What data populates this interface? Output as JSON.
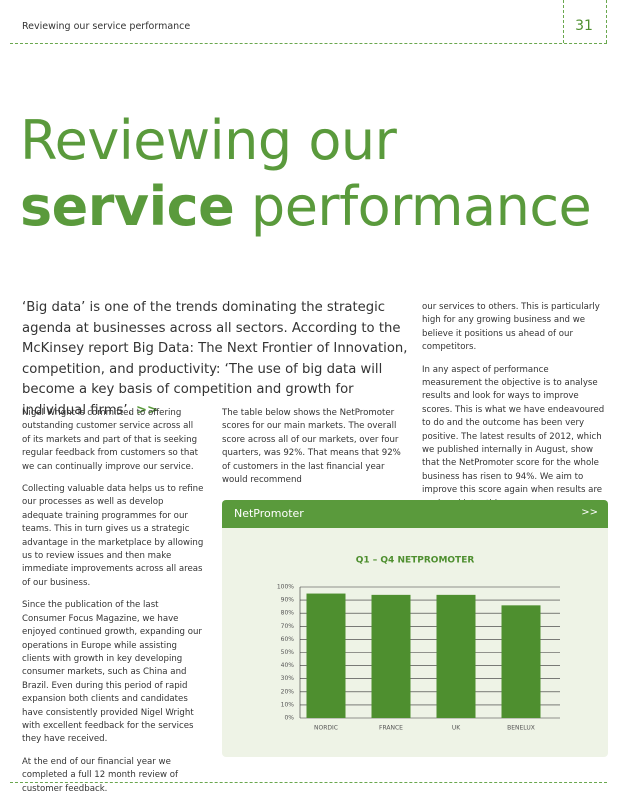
{
  "header": {
    "running_title": "Reviewing our service performance",
    "page_number": "31"
  },
  "title": {
    "line1": "Reviewing our",
    "line2_bold": "service",
    "line2_rest": "performance"
  },
  "intro": {
    "text": "‘Big data’ is one of the trends dominating the strategic agenda at businesses across all sectors. According to the McKinsey report Big Data: The Next Frontier of Innovation, competition, and productivity: ‘The use of big data will become a key basis of competition and growth for individual firms’.",
    "more": ">>"
  },
  "columns": [
    [
      "Nigel Wright is committed to offering outstanding customer service across all of its markets and part of that is seeking regular feedback from customers so that we can continually improve our service.",
      "Collecting valuable data helps us to refine our processes as well as develop adequate training programmes for our teams. This in turn gives us a strategic advantage in the marketplace by allowing us to review issues and then make immediate improvements across all areas of our business.",
      "Since the publication of the last Consumer Focus Magazine, we have enjoyed continued growth, expanding our operations in Europe while assisting clients with growth in key developing consumer markets, such as China and Brazil. Even during this period of rapid expansion both clients and candidates have consistently provided Nigel Wright with excellent feedback for the services they have received.",
      "At the end of our financial year we completed a full 12 month review of customer feedback."
    ],
    [
      "The table below shows the NetPromoter scores for our main markets. The overall score across all of our markets, over four quarters, was 92%. That means that 92% of customers in the last financial year would recommend"
    ],
    [
      "our services to others. This is particularly high for any growing business and we believe it positions us ahead of our competitors.",
      "In any aspect of performance measurement the objective is to analyse results and look for ways to improve scores. This is what we have endeavoured to do and the outcome has been very positive. The latest results of 2012, which we published internally in August, show that the NetPromoter score for the whole business has risen to 94%. We aim to improve this score again when results are analysed later this year."
    ]
  ],
  "panel": {
    "title": "NetPromoter",
    "more": ">>"
  },
  "chart_data": {
    "type": "bar",
    "title": "Q1 – Q4 NETPROMOTER",
    "categories": [
      "NORDIC",
      "FRANCE",
      "UK",
      "BENELUX"
    ],
    "values": [
      95,
      94,
      94,
      86
    ],
    "color": "#4e8f2f",
    "ylim": [
      0,
      100
    ],
    "yticks": [
      {
        "value": 0,
        "label": "0%"
      },
      {
        "value": 10,
        "label": "10%"
      },
      {
        "value": 20,
        "label": "20%"
      },
      {
        "value": 30,
        "label": "30%"
      },
      {
        "value": 40,
        "label": "40%"
      },
      {
        "value": 50,
        "label": "50%"
      },
      {
        "value": 60,
        "label": "60%"
      },
      {
        "value": 70,
        "label": "70%"
      },
      {
        "value": 80,
        "label": "80%"
      },
      {
        "value": 90,
        "label": "90%"
      },
      {
        "value": 100,
        "label": "100%"
      }
    ],
    "grid": true
  }
}
